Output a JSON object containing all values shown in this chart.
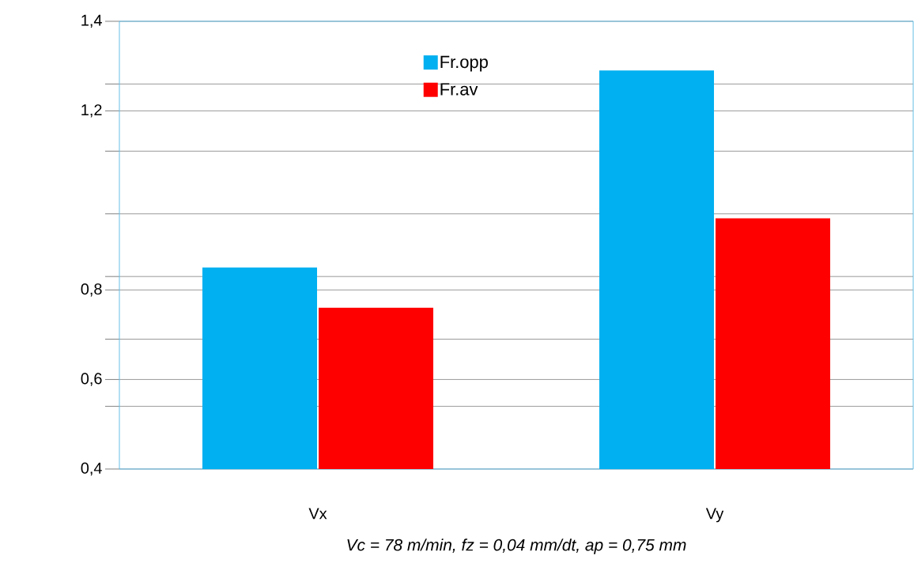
{
  "chart_data": {
    "type": "bar",
    "categories": [
      "Vx",
      "Vy"
    ],
    "series": [
      {
        "name": "Fr.opp",
        "color": "#00b0f0",
        "values": [
          0.85,
          1.29
        ]
      },
      {
        "name": "Fr.av",
        "color": "#ff0000",
        "values": [
          0.76,
          0.96
        ]
      }
    ],
    "xlabel": "*Vc = 78  m/min, fz = 0,04 mm/dt, ap = 0,75  mm*",
    "ylim": [
      0.4,
      1.4
    ],
    "yticks": [
      {
        "value": 0.4,
        "label": "0,4"
      },
      {
        "value": 0.54,
        "label": null
      },
      {
        "value": 0.6,
        "label": "0,6"
      },
      {
        "value": 0.69,
        "label": null
      },
      {
        "value": 0.8,
        "label": "0,8"
      },
      {
        "value": 0.83,
        "label": null
      },
      {
        "value": 0.97,
        "label": null
      },
      {
        "value": 1.11,
        "label": null
      },
      {
        "value": 1.2,
        "label": "1,2"
      },
      {
        "value": 1.26,
        "label": null
      },
      {
        "value": 1.4,
        "label": "1,4"
      }
    ],
    "grid": "y",
    "legend": "top"
  }
}
